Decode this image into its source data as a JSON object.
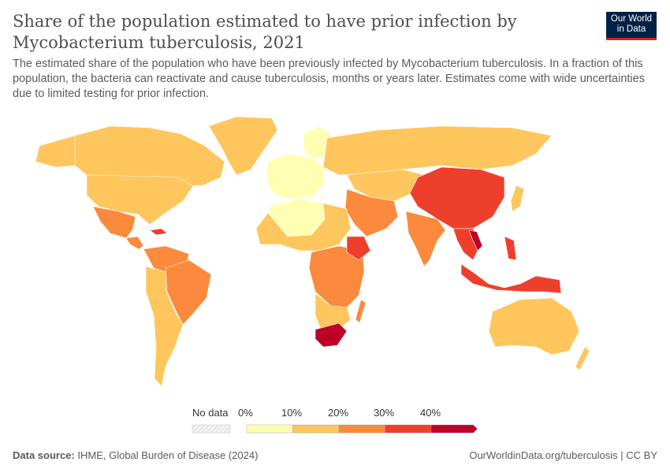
{
  "header": {
    "title": "Share of the population estimated to have prior infection by Mycobacterium tuberculosis, 2021",
    "subtitle": "The estimated share of the population who have been previously infected by Mycobacterium tuberculosis. In a fraction of this population, the bacteria can reactivate and cause tuberculosis, months or years later. Estimates come with wide uncertainties due to limited testing for prior infection.",
    "logo_text": "Our World in Data"
  },
  "legend": {
    "no_data_label": "No data",
    "bins": [
      {
        "label": "0%",
        "color": "#feffb3"
      },
      {
        "label": "10%",
        "color": "#fec65c"
      },
      {
        "label": "20%",
        "color": "#fb8a3c"
      },
      {
        "label": "30%",
        "color": "#ee3f2c"
      },
      {
        "label": "40%",
        "color": "#bd0026"
      }
    ]
  },
  "footer": {
    "source_label": "Data source:",
    "source_text": "IHME, Global Burden of Disease (2024)",
    "right_text": "OurWorldinData.org/tuberculosis | CC BY"
  }
}
